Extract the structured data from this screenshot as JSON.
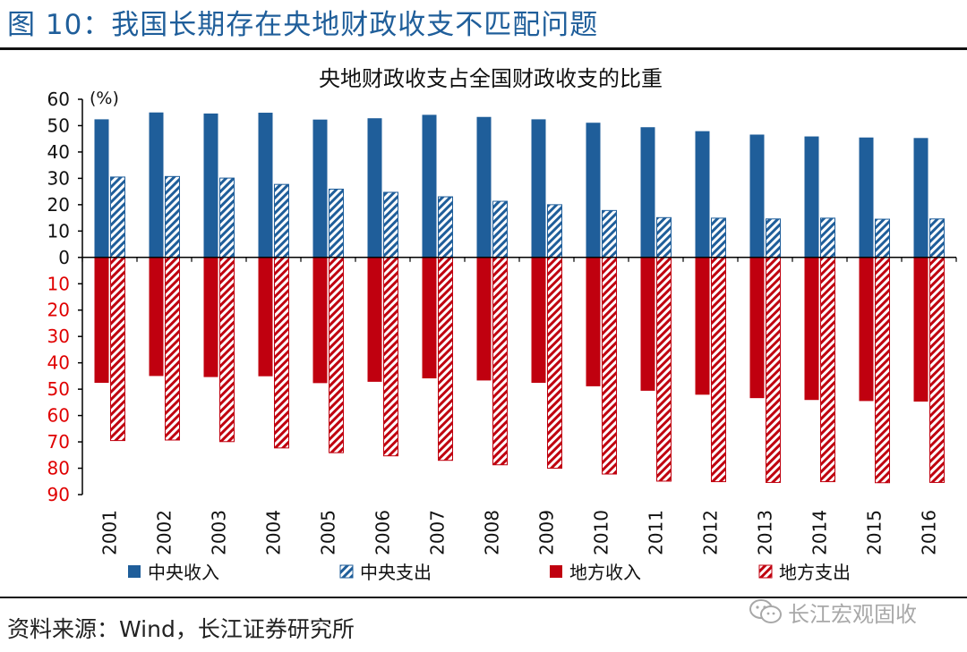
{
  "figure_title": "图 10：我国长期存在央地财政收支不匹配问题",
  "source_note": "资料来源：Wind，长江证券研究所",
  "watermark": {
    "text": "长江宏观固收",
    "icon": "wechat-icon"
  },
  "colors": {
    "blue": "#1f5e9a",
    "red": "#c0000f",
    "title_blue": "#1f5e9a",
    "negative_tick": "#e00000"
  },
  "chart_data": {
    "type": "bar",
    "title": "央地财政收支占全国财政收支的比重",
    "unit_label": "(%)",
    "categories": [
      "2001",
      "2002",
      "2003",
      "2004",
      "2005",
      "2006",
      "2007",
      "2008",
      "2009",
      "2010",
      "2011",
      "2012",
      "2013",
      "2014",
      "2015",
      "2016"
    ],
    "ylim": [
      -90,
      60
    ],
    "y_ticks": [
      60,
      50,
      40,
      30,
      20,
      10,
      0,
      -10,
      -20,
      -30,
      -40,
      -50,
      -60,
      -70,
      -80,
      -90
    ],
    "y_tick_labels": [
      "60",
      "50",
      "40",
      "30",
      "20",
      "10",
      "0",
      "10",
      "20",
      "30",
      "40",
      "50",
      "60",
      "70",
      "80",
      "90"
    ],
    "grid": false,
    "legend_position": "bottom",
    "series": [
      {
        "name": "中央收入",
        "style": "solid",
        "color": "#1f5e9a",
        "values": [
          52.4,
          55.0,
          54.6,
          54.9,
          52.3,
          52.8,
          54.1,
          53.3,
          52.4,
          51.1,
          49.4,
          47.9,
          46.6,
          45.9,
          45.5,
          45.3
        ]
      },
      {
        "name": "中央支出",
        "style": "hatched",
        "color": "#1f5e9a",
        "values": [
          30.5,
          30.7,
          30.1,
          27.7,
          25.9,
          24.7,
          23.0,
          21.3,
          20.0,
          17.8,
          15.1,
          14.9,
          14.6,
          14.9,
          14.5,
          14.6
        ]
      },
      {
        "name": "地方收入",
        "style": "solid",
        "color": "#c0000f",
        "values": [
          -47.6,
          -45.0,
          -45.4,
          -45.1,
          -47.7,
          -47.2,
          -45.9,
          -46.7,
          -47.6,
          -48.9,
          -50.6,
          -52.1,
          -53.4,
          -54.1,
          -54.5,
          -54.7
        ]
      },
      {
        "name": "地方支出",
        "style": "hatched",
        "color": "#c0000f",
        "values": [
          -69.5,
          -69.3,
          -69.9,
          -72.3,
          -74.1,
          -75.3,
          -77.0,
          -78.7,
          -80.0,
          -82.2,
          -84.9,
          -85.1,
          -85.4,
          -85.1,
          -85.5,
          -85.4
        ]
      }
    ]
  }
}
